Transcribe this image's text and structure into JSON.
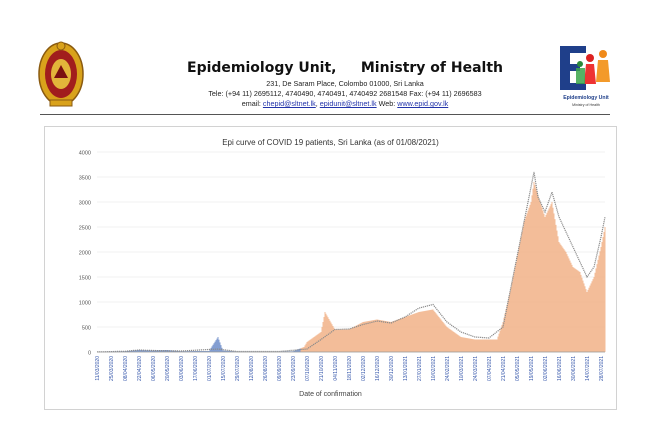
{
  "header": {
    "title": "Epidemiology Unit,     Ministry of Health",
    "address": "231, De Saram Place, Colombo 01000, Sri Lanka",
    "contact": "Tele: (+94 11) 2695112, 4740490, 4740491, 4740492 2681548  Fax: (+94 11) 2696583",
    "email_label": "email:",
    "email1": "chepid@sltnet.lk",
    "email2": "epidunit@sltnet.lk",
    "web_label": "Web:",
    "web": "www.epid.gov.lk",
    "logo_right_text": "Epidemiology Unit",
    "logo_right_subtext": "Ministry of Health"
  },
  "chart_data": {
    "type": "bar",
    "title": "Epi curve of COVID 19 patients, Sri Lanka  (as of 01/08/2021)",
    "xlabel": "Date of confirmation",
    "ylabel": "",
    "ylim": [
      0,
      4000
    ],
    "yticks": [
      0,
      500,
      1000,
      1500,
      2000,
      2500,
      3000,
      3500,
      4000
    ],
    "x_start": "11/03/2020",
    "x_end": "01/08/2021",
    "x_tick_labels": [
      "11/03/2020",
      "25/03/2020",
      "08/04/2020",
      "22/04/2020",
      "06/05/2020",
      "20/05/2020",
      "03/06/2020",
      "17/06/2020",
      "01/07/2020",
      "15/07/2020",
      "29/07/2020",
      "12/08/2020",
      "26/08/2020",
      "09/09/2020",
      "23/09/2020",
      "07/10/2020",
      "21/10/2020",
      "04/11/2020",
      "18/11/2020",
      "02/12/2020",
      "16/12/2020",
      "30/12/2020",
      "13/01/2021",
      "27/01/2021",
      "10/02/2021",
      "24/02/2021",
      "10/03/2021",
      "24/03/2021",
      "07/04/2021",
      "21/04/2021",
      "05/05/2021",
      "19/05/2021",
      "02/06/2021",
      "16/06/2021",
      "30/06/2021",
      "14/07/2021",
      "28/07/2021"
    ],
    "series_colors": {
      "daily_bars_before_oct_2020": "#5b7fc4",
      "daily_bars_from_oct_2020": "#f0a878",
      "seven_day_average": "#8a8a8a"
    },
    "series": [
      {
        "kind": "daily_cases_bars",
        "points": [
          [
            "11/03/2020",
            1
          ],
          [
            "25/03/2020",
            10
          ],
          [
            "08/04/2020",
            15
          ],
          [
            "22/04/2020",
            40
          ],
          [
            "06/05/2020",
            30
          ],
          [
            "20/05/2020",
            40
          ],
          [
            "03/06/2020",
            15
          ],
          [
            "17/06/2020",
            20
          ],
          [
            "01/07/2020",
            20
          ],
          [
            "10/07/2020",
            300
          ],
          [
            "15/07/2020",
            30
          ],
          [
            "29/07/2020",
            10
          ],
          [
            "12/08/2020",
            8
          ],
          [
            "26/08/2020",
            8
          ],
          [
            "09/09/2020",
            10
          ],
          [
            "23/09/2020",
            15
          ],
          [
            "04/10/2020",
            100
          ],
          [
            "07/10/2020",
            200
          ],
          [
            "14/10/2020",
            300
          ],
          [
            "21/10/2020",
            400
          ],
          [
            "25/10/2020",
            800
          ],
          [
            "04/11/2020",
            450
          ],
          [
            "18/11/2020",
            450
          ],
          [
            "02/12/2020",
            600
          ],
          [
            "16/12/2020",
            650
          ],
          [
            "30/12/2020",
            600
          ],
          [
            "13/01/2021",
            700
          ],
          [
            "27/01/2021",
            800
          ],
          [
            "10/02/2021",
            850
          ],
          [
            "24/02/2021",
            500
          ],
          [
            "10/03/2021",
            300
          ],
          [
            "24/03/2021",
            250
          ],
          [
            "07/04/2021",
            250
          ],
          [
            "15/04/2021",
            250
          ],
          [
            "21/04/2021",
            600
          ],
          [
            "28/04/2021",
            1200
          ],
          [
            "05/05/2021",
            1900
          ],
          [
            "12/05/2021",
            2600
          ],
          [
            "19/05/2021",
            3000
          ],
          [
            "22/05/2021",
            3400
          ],
          [
            "02/06/2021",
            2700
          ],
          [
            "09/06/2021",
            3000
          ],
          [
            "16/06/2021",
            2200
          ],
          [
            "23/06/2021",
            2000
          ],
          [
            "30/06/2021",
            1700
          ],
          [
            "07/07/2021",
            1600
          ],
          [
            "14/07/2021",
            1200
          ],
          [
            "21/07/2021",
            1500
          ],
          [
            "28/07/2021",
            2100
          ],
          [
            "01/08/2021",
            2500
          ]
        ]
      },
      {
        "kind": "moving_average_line",
        "points": [
          [
            "11/03/2020",
            1
          ],
          [
            "08/04/2020",
            15
          ],
          [
            "22/04/2020",
            40
          ],
          [
            "06/05/2020",
            30
          ],
          [
            "03/06/2020",
            20
          ],
          [
            "10/07/2020",
            60
          ],
          [
            "29/07/2020",
            10
          ],
          [
            "09/09/2020",
            10
          ],
          [
            "07/10/2020",
            60
          ],
          [
            "21/10/2020",
            250
          ],
          [
            "04/11/2020",
            450
          ],
          [
            "18/11/2020",
            460
          ],
          [
            "02/12/2020",
            550
          ],
          [
            "16/12/2020",
            620
          ],
          [
            "30/12/2020",
            580
          ],
          [
            "13/01/2021",
            700
          ],
          [
            "27/01/2021",
            880
          ],
          [
            "10/02/2021",
            950
          ],
          [
            "24/02/2021",
            600
          ],
          [
            "10/03/2021",
            400
          ],
          [
            "24/03/2021",
            300
          ],
          [
            "07/04/2021",
            280
          ],
          [
            "21/04/2021",
            500
          ],
          [
            "28/04/2021",
            1200
          ],
          [
            "05/05/2021",
            1900
          ],
          [
            "12/05/2021",
            2600
          ],
          [
            "19/05/2021",
            3300
          ],
          [
            "22/05/2021",
            3600
          ],
          [
            "26/05/2021",
            3100
          ],
          [
            "02/06/2021",
            2800
          ],
          [
            "09/06/2021",
            3200
          ],
          [
            "16/06/2021",
            2700
          ],
          [
            "23/06/2021",
            2400
          ],
          [
            "30/06/2021",
            2100
          ],
          [
            "07/07/2021",
            1800
          ],
          [
            "14/07/2021",
            1500
          ],
          [
            "21/07/2021",
            1700
          ],
          [
            "28/07/2021",
            2300
          ],
          [
            "01/08/2021",
            2700
          ]
        ]
      }
    ]
  }
}
